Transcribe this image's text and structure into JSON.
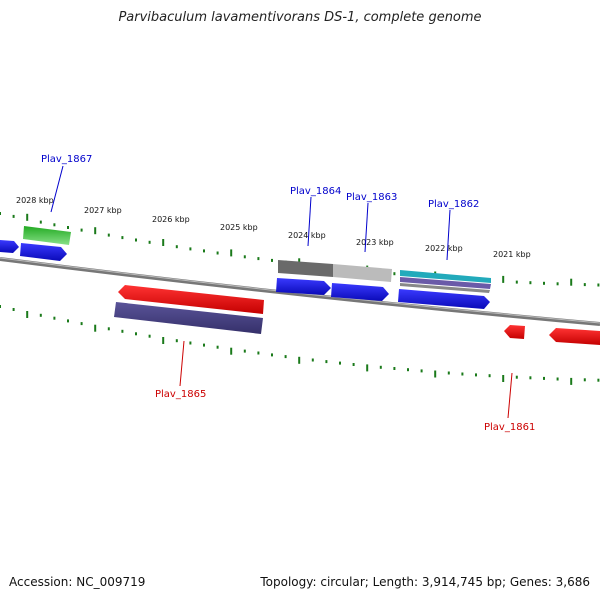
{
  "title": "Parvibaculum lavamentivorans DS-1, complete genome",
  "footer": {
    "accession": "Accession: NC_009719",
    "summary": "Topology: circular; Length: 3,914,745 bp; Genes: 3,686"
  },
  "scale_labels": [
    "2028 kbp",
    "2027 kbp",
    "2026 kbp",
    "2025 kbp",
    "2024 kbp",
    "2023 kbp",
    "2022 kbp",
    "2021 kbp"
  ],
  "gene_labels": {
    "plav_1867": "Plav_1867",
    "plav_1864": "Plav_1864",
    "plav_1863": "Plav_1863",
    "plav_1862": "Plav_1862",
    "plav_1865": "Plav_1865",
    "plav_1861": "Plav_1861"
  },
  "colors": {
    "forward_gene": "#1a1aee",
    "reverse_gene": "#ee1111",
    "green_feature": "#33bb33",
    "purple_feature": "#4a4488",
    "gray_feature": "#777777",
    "cyan_feature": "#22aabb",
    "tick": "#1a7a1a",
    "backbone": "#888888",
    "label_forward": "#0000cc",
    "label_reverse": "#cc0000"
  }
}
